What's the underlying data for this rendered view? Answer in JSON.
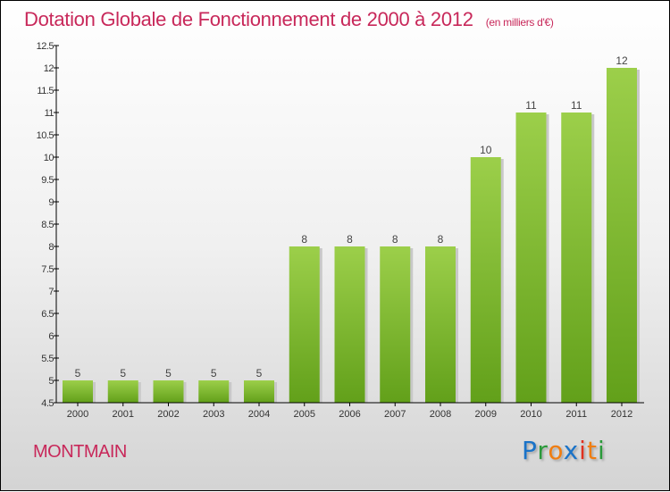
{
  "title": "Dotation Globale de Fonctionnement de 2000 à 2012",
  "unit": "(en milliers d'€)",
  "town": "MONTMAIN",
  "logo": {
    "text": "Proxiti",
    "colors": [
      "#1a73c8",
      "#2a9a3a",
      "#f07d10",
      "#1a73c8",
      "#e0301e",
      "#f07d10",
      "#2a9a3a"
    ]
  },
  "chart_data": {
    "type": "bar",
    "title": "Dotation Globale de Fonctionnement de 2000 à 2012",
    "ylabel": "(en milliers d'€)",
    "xlabel": "",
    "categories": [
      "2000",
      "2001",
      "2002",
      "2003",
      "2004",
      "2005",
      "2006",
      "2007",
      "2008",
      "2009",
      "2010",
      "2011",
      "2012"
    ],
    "values": [
      5,
      5,
      5,
      5,
      5,
      8,
      8,
      8,
      8,
      10,
      11,
      11,
      12
    ],
    "ylim": [
      4.5,
      12.5
    ],
    "yticks": [
      4.5,
      5,
      5.5,
      6,
      6.5,
      7,
      7.5,
      8,
      8.5,
      9,
      9.5,
      10,
      10.5,
      11,
      11.5,
      12,
      12.5
    ],
    "bar_color": "#7cb82f",
    "grid": false,
    "legend": "none"
  }
}
